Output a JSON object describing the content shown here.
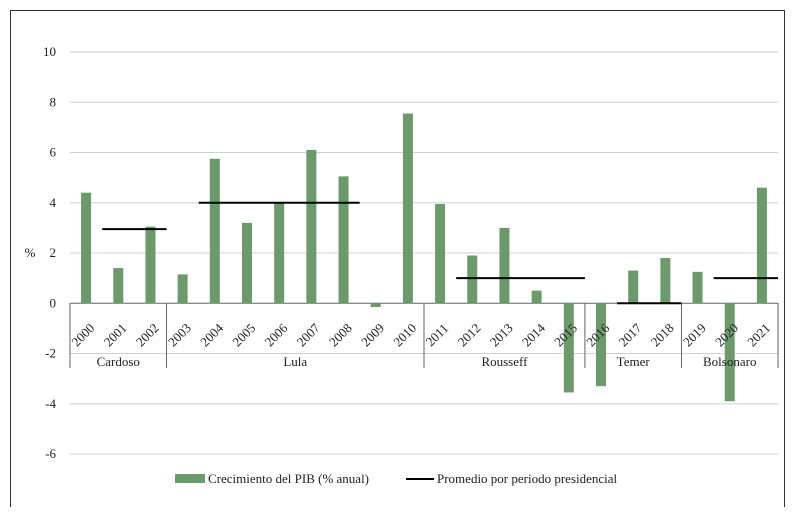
{
  "chart_data": {
    "type": "bar",
    "ylabel": "%",
    "ylim": [
      -6,
      10
    ],
    "yticks": [
      "10",
      "8",
      "6",
      "4",
      "2",
      "0",
      "-2",
      "-4",
      "-6"
    ],
    "grid": true,
    "legend_position": "bottom",
    "categories": [
      "2000",
      "2001",
      "2002",
      "2003",
      "2004",
      "2005",
      "2006",
      "2007",
      "2008",
      "2009",
      "2010",
      "2011",
      "2012",
      "2013",
      "2014",
      "2015",
      "2016",
      "2017",
      "2018",
      "2019",
      "2020",
      "2021"
    ],
    "series": [
      {
        "name": "Crecimiento del PIB (% anual)",
        "kind": "bar",
        "color": "#6b9a6b",
        "values": [
          4.4,
          1.4,
          3.05,
          1.15,
          5.75,
          3.2,
          4.0,
          6.1,
          5.05,
          -0.15,
          7.55,
          3.95,
          1.9,
          3.0,
          0.5,
          -3.55,
          -3.3,
          1.3,
          1.8,
          1.25,
          -3.9,
          4.6
        ]
      },
      {
        "name": "Promedio por periodo presidencial",
        "kind": "segment",
        "color": "#000000",
        "segments": [
          {
            "from": "2001",
            "to": "2002",
            "value": 2.95
          },
          {
            "from": "2004",
            "to": "2008",
            "value": 4.0
          },
          {
            "from": "2012",
            "to": "2015",
            "value": 1.0
          },
          {
            "from": "2017",
            "to": "2018",
            "value": 0.0
          },
          {
            "from": "2020",
            "to": "2021",
            "value": 1.0
          }
        ]
      }
    ],
    "periods": [
      {
        "name": "Cardoso",
        "from": "2000",
        "to": "2002"
      },
      {
        "name": "Lula",
        "from": "2003",
        "to": "2010"
      },
      {
        "name": "Rousseff",
        "from": "2011",
        "to": "2015"
      },
      {
        "name": "Temer",
        "from": "2016",
        "to": "2018"
      },
      {
        "name": "Bolsonaro",
        "from": "2019",
        "to": "2021"
      }
    ],
    "legend": {
      "bar_label": "Crecimiento del PIB (% anual)",
      "line_label": "Promedio por periodo presidencial"
    }
  }
}
